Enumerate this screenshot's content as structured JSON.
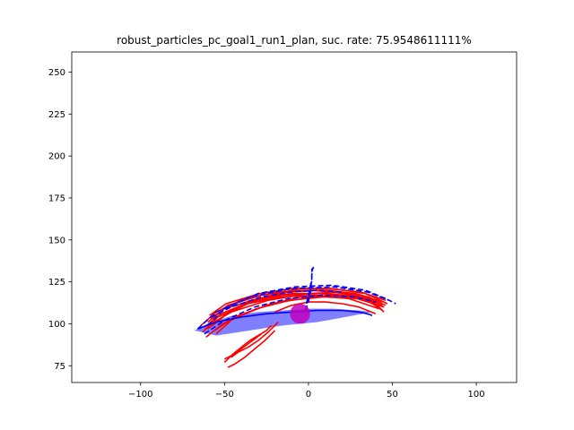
{
  "chart_data": {
    "type": "line",
    "title": "robust_particles_pc_goal1_run1_plan, suc. rate: 75.9548611111%",
    "xlabel": "",
    "ylabel": "",
    "xlim": [
      -141,
      124
    ],
    "ylim": [
      65,
      262
    ],
    "grid": false,
    "x_ticks": [
      -100,
      -50,
      0,
      50,
      100
    ],
    "y_ticks": [
      75,
      100,
      125,
      150,
      175,
      200,
      225,
      250
    ],
    "x_tick_labels": [
      "−100",
      "−50",
      "0",
      "50",
      "100"
    ],
    "y_tick_labels": [
      "75",
      "100",
      "125",
      "150",
      "175",
      "200",
      "225",
      "250"
    ],
    "colors": {
      "particles": "#ff0000",
      "plan": "#0000ff",
      "region_fill": "#0000ff",
      "goal": "#bf00bf"
    },
    "series": [
      {
        "kind": "particle",
        "x": [
          -60,
          -50,
          -30,
          -10,
          10,
          30,
          45
        ],
        "y": [
          101,
          109,
          115,
          118,
          118,
          116,
          110
        ]
      },
      {
        "kind": "particle",
        "x": [
          -62,
          -52,
          -35,
          -15,
          5,
          25,
          43
        ],
        "y": [
          98,
          106,
          113,
          117,
          118,
          117,
          112
        ]
      },
      {
        "kind": "particle",
        "x": [
          -58,
          -48,
          -28,
          -8,
          12,
          32,
          46
        ],
        "y": [
          103,
          111,
          117,
          120,
          120,
          117,
          111
        ]
      },
      {
        "kind": "particle",
        "x": [
          -63,
          -54,
          -36,
          -16,
          4,
          24,
          42
        ],
        "y": [
          95,
          104,
          112,
          116,
          117,
          115,
          109
        ]
      },
      {
        "kind": "particle",
        "x": [
          -60,
          -50,
          -32,
          -12,
          8,
          28,
          44
        ],
        "y": [
          97,
          105,
          114,
          119,
          120,
          118,
          113
        ]
      },
      {
        "kind": "particle",
        "x": [
          -57,
          -46,
          -26,
          -6,
          14,
          34,
          47
        ],
        "y": [
          99,
          108,
          116,
          121,
          121,
          118,
          112
        ]
      },
      {
        "kind": "particle",
        "x": [
          -55,
          -45,
          -25,
          -5,
          15,
          35,
          44
        ],
        "y": [
          94,
          103,
          111,
          116,
          117,
          114,
          108
        ]
      },
      {
        "kind": "particle",
        "x": [
          -61,
          -51,
          -31,
          -11,
          9,
          29,
          45
        ],
        "y": [
          92,
          100,
          109,
          114,
          116,
          115,
          110
        ]
      },
      {
        "kind": "particle",
        "x": [
          -59,
          -49,
          -29,
          -9,
          11,
          31,
          46
        ],
        "y": [
          105,
          112,
          118,
          121,
          121,
          119,
          114
        ]
      },
      {
        "kind": "particle",
        "x": [
          -58,
          -46,
          -24,
          0,
          20,
          36,
          44
        ],
        "y": [
          100,
          107,
          114,
          118,
          119,
          116,
          111
        ]
      },
      {
        "kind": "particle",
        "x": [
          -64,
          -55,
          -38,
          -18,
          2,
          22,
          40
        ],
        "y": [
          99,
          107,
          115,
          119,
          120,
          118,
          114
        ]
      },
      {
        "kind": "particle",
        "x": [
          -56,
          -44,
          -22,
          2,
          22,
          38,
          45
        ],
        "y": [
          96,
          104,
          112,
          116,
          117,
          114,
          107
        ]
      },
      {
        "kind": "particle",
        "x": [
          -20,
          -10,
          0,
          10,
          20,
          30,
          40
        ],
        "y": [
          107,
          111,
          113,
          113,
          112,
          110,
          106
        ]
      },
      {
        "kind": "particle",
        "x": [
          -50,
          -45,
          -40,
          -35,
          -30,
          -25,
          -22
        ],
        "y": [
          77,
          82,
          86,
          90,
          93,
          96,
          99
        ]
      },
      {
        "kind": "particle",
        "x": [
          -48,
          -44,
          -38,
          -32,
          -26,
          -20
        ],
        "y": [
          74,
          76,
          80,
          85,
          90,
          96
        ]
      },
      {
        "kind": "particle",
        "x": [
          -46,
          -42,
          -36,
          -30,
          -24,
          -18
        ],
        "y": [
          80,
          83,
          86,
          90,
          95,
          101
        ]
      },
      {
        "kind": "particle",
        "x": [
          -50,
          -44,
          -40,
          -36,
          -32,
          -28
        ],
        "y": [
          79,
          82,
          85,
          88,
          91,
          94
        ]
      },
      {
        "kind": "plan",
        "x": [
          -66,
          -55,
          -35,
          -10,
          15,
          35,
          48,
          52
        ],
        "y": [
          97,
          107,
          116,
          121,
          122,
          119,
          114,
          112
        ]
      },
      {
        "kind": "plan",
        "x": [
          -60,
          -50,
          -30,
          -8,
          14,
          34,
          46
        ],
        "y": [
          99,
          109,
          118,
          122,
          123,
          120,
          115
        ]
      },
      {
        "kind": "plan",
        "x": [
          -62,
          -50,
          -32,
          -12,
          8,
          28,
          40
        ],
        "y": [
          94,
          102,
          110,
          115,
          117,
          116,
          113
        ]
      },
      {
        "kind": "plan",
        "x": [
          -58,
          -46,
          -28,
          -10,
          6,
          20
        ],
        "y": [
          104,
          110,
          116,
          119,
          120,
          119
        ]
      },
      {
        "kind": "plan",
        "x": [
          -1,
          0,
          1,
          2,
          2,
          3
        ],
        "y": [
          112,
          117,
          122,
          127,
          131,
          134
        ]
      },
      {
        "kind": "plan",
        "x": [
          -1,
          1,
          2,
          2
        ],
        "y": [
          113,
          120,
          126,
          133
        ]
      },
      {
        "kind": "plan",
        "x": [
          -2,
          -1,
          0,
          1,
          2
        ],
        "y": [
          108,
          110,
          113,
          118,
          123
        ]
      }
    ],
    "shaded_region": {
      "x": [
        -68,
        -60,
        -45,
        -30,
        -15,
        0,
        15,
        30,
        38,
        22,
        5,
        -15,
        -35,
        -55,
        -68
      ],
      "y": [
        96,
        100,
        105,
        107,
        108,
        109,
        109,
        108,
        107,
        104,
        101,
        99,
        96,
        93,
        96
      ]
    },
    "solid_arc": {
      "x": [
        -66,
        -55,
        -40,
        -25,
        -10,
        5,
        20,
        30,
        35,
        38
      ],
      "y": [
        97,
        101,
        104,
        106,
        107,
        108,
        108,
        107,
        106,
        105
      ]
    },
    "goal": {
      "x": -5,
      "y": 106,
      "radius": 6
    }
  }
}
